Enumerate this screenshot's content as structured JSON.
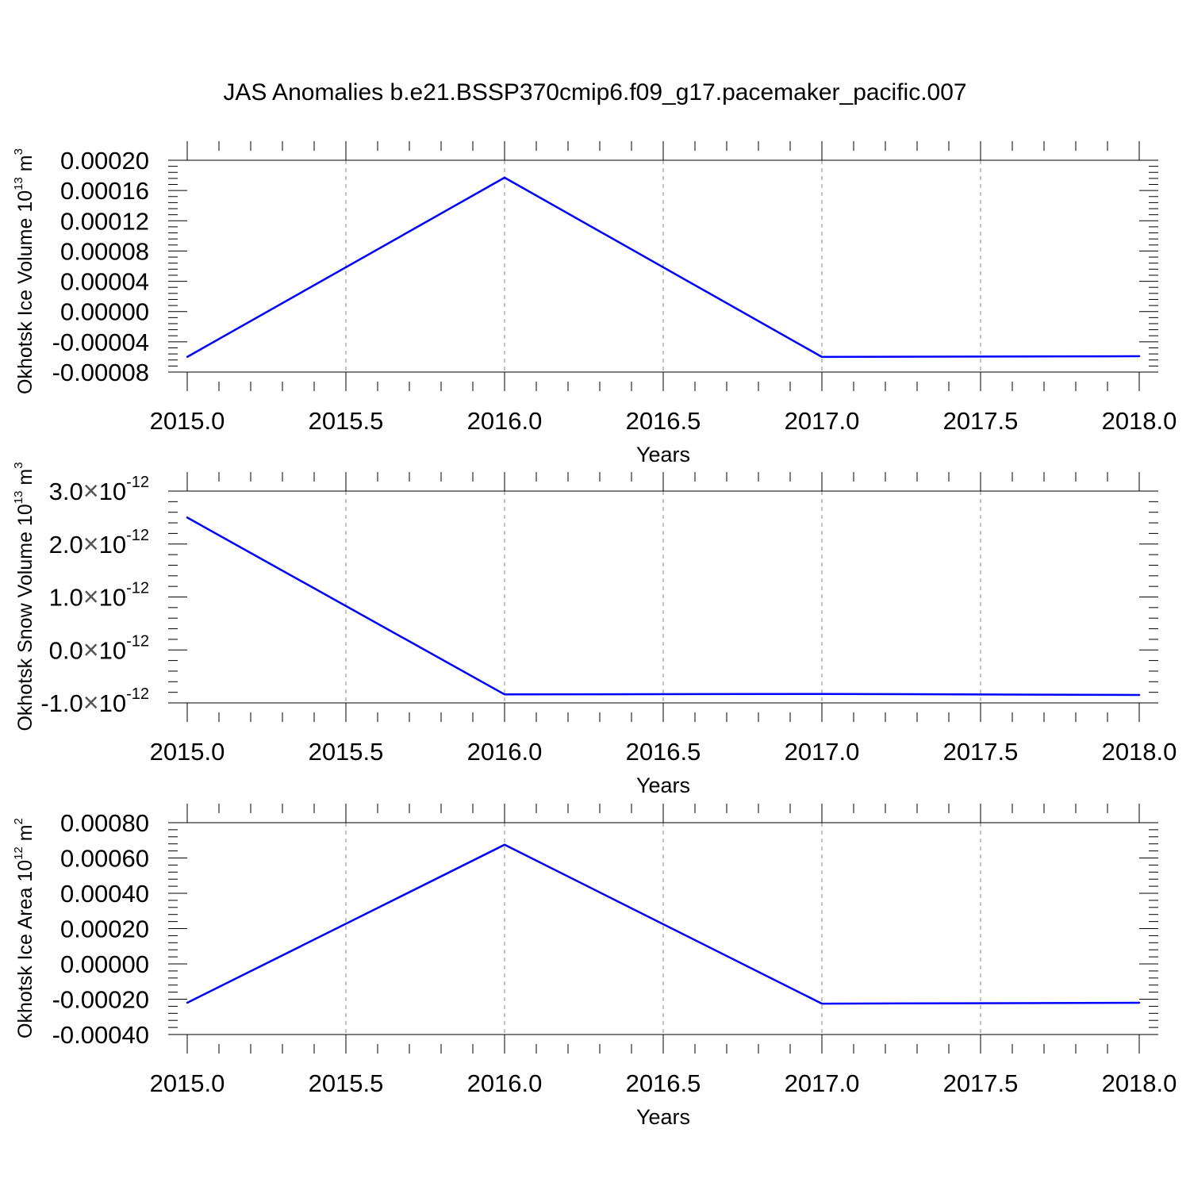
{
  "title": "JAS Anomalies b.e21.BSSP370cmip6.f09_g17.pacemaker_pacific.007",
  "colors": {
    "line": "#0000ff",
    "axis": "#000000",
    "grid": "#888888"
  },
  "chart_data": [
    {
      "type": "line",
      "xlabel": "Years",
      "ylabel_main": "Okhotsk Ice Volume 10",
      "ylabel_exp": "13",
      "ylabel_unit": " m",
      "ylabel_unit_exp": "3",
      "xlim": [
        2015.0,
        2018.0
      ],
      "ylim": [
        -8e-05,
        0.0002
      ],
      "x_ticks": [
        "2015.0",
        "2015.5",
        "2016.0",
        "2016.5",
        "2017.0",
        "2017.5",
        "2018.0"
      ],
      "y_ticks": [
        {
          "value": 0.0002,
          "label": "0.00020"
        },
        {
          "value": 0.00016,
          "label": "0.00016"
        },
        {
          "value": 0.00012,
          "label": "0.00012"
        },
        {
          "value": 8e-05,
          "label": "0.00008"
        },
        {
          "value": 4e-05,
          "label": "0.00004"
        },
        {
          "value": 0.0,
          "label": "0.00000"
        },
        {
          "value": -4e-05,
          "label": "-0.00004"
        },
        {
          "value": -8e-05,
          "label": "-0.00008"
        }
      ],
      "series": [
        {
          "x": [
            2015,
            2016,
            2017,
            2018
          ],
          "values": [
            -6e-05,
            0.000177,
            -6e-05,
            -5.9e-05
          ]
        }
      ]
    },
    {
      "type": "line",
      "xlabel": "Years",
      "ylabel_main": "Okhotsk Snow Volume 10",
      "ylabel_exp": "13",
      "ylabel_unit": " m",
      "ylabel_unit_exp": "3",
      "xlim": [
        2015.0,
        2018.0
      ],
      "ylim": [
        -1e-12,
        3e-12
      ],
      "x_ticks": [
        "2015.0",
        "2015.5",
        "2016.0",
        "2016.5",
        "2017.0",
        "2017.5",
        "2018.0"
      ],
      "y_ticks": [
        {
          "value": 3e-12,
          "mant": "3.0",
          "exp": "-12"
        },
        {
          "value": 2e-12,
          "mant": "2.0",
          "exp": "-12"
        },
        {
          "value": 1e-12,
          "mant": "1.0",
          "exp": "-12"
        },
        {
          "value": 0.0,
          "mant": "0.0",
          "exp": "-12"
        },
        {
          "value": -1e-12,
          "mant": "-1.0",
          "exp": "-12"
        }
      ],
      "series": [
        {
          "x": [
            2015,
            2016,
            2017,
            2018
          ],
          "values": [
            2.5e-12,
            -8.4e-13,
            -8.3e-13,
            -8.5e-13
          ]
        }
      ]
    },
    {
      "type": "line",
      "xlabel": "Years",
      "ylabel_main": "Okhotsk Ice Area 10",
      "ylabel_exp": "12",
      "ylabel_unit": " m",
      "ylabel_unit_exp": "2",
      "xlim": [
        2015.0,
        2018.0
      ],
      "ylim": [
        -0.0004,
        0.0008
      ],
      "x_ticks": [
        "2015.0",
        "2015.5",
        "2016.0",
        "2016.5",
        "2017.0",
        "2017.5",
        "2018.0"
      ],
      "y_ticks": [
        {
          "value": 0.0008,
          "label": "0.00080"
        },
        {
          "value": 0.0006,
          "label": "0.00060"
        },
        {
          "value": 0.0004,
          "label": "0.00040"
        },
        {
          "value": 0.0002,
          "label": "0.00020"
        },
        {
          "value": 0.0,
          "label": "0.00000"
        },
        {
          "value": -0.0002,
          "label": "-0.00020"
        },
        {
          "value": -0.0004,
          "label": "-0.00040"
        }
      ],
      "series": [
        {
          "x": [
            2015,
            2016,
            2017,
            2018
          ],
          "values": [
            -0.00022,
            0.000675,
            -0.000225,
            -0.00022
          ]
        }
      ]
    }
  ]
}
